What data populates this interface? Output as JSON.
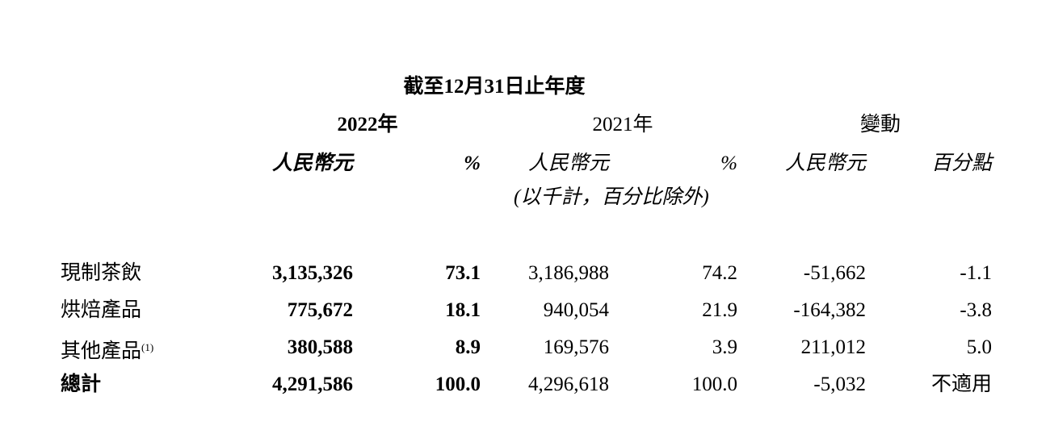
{
  "title": "截至12月31日止年度",
  "years": [
    "2022年",
    "2021年",
    "變動"
  ],
  "subheaders": [
    "人民幣元",
    "%",
    "人民幣元",
    "%",
    "人民幣元",
    "百分點"
  ],
  "note": "(以千計，百分比除外)",
  "rows": [
    {
      "label": "現制茶飲",
      "footnote": "",
      "values": [
        "3,135,326",
        "73.1",
        "3,186,988",
        "74.2",
        "-51,662",
        "-1.1"
      ]
    },
    {
      "label": "烘焙產品",
      "footnote": "",
      "values": [
        "775,672",
        "18.1",
        "940,054",
        "21.9",
        "-164,382",
        "-3.8"
      ]
    },
    {
      "label": "其他產品",
      "footnote": "(1)",
      "values": [
        "380,588",
        "8.9",
        "169,576",
        "3.9",
        "211,012",
        "5.0"
      ]
    },
    {
      "label": "總計",
      "footnote": "",
      "values": [
        "4,291,586",
        "100.0",
        "4,296,618",
        "100.0",
        "-5,032",
        "不適用"
      ]
    }
  ]
}
